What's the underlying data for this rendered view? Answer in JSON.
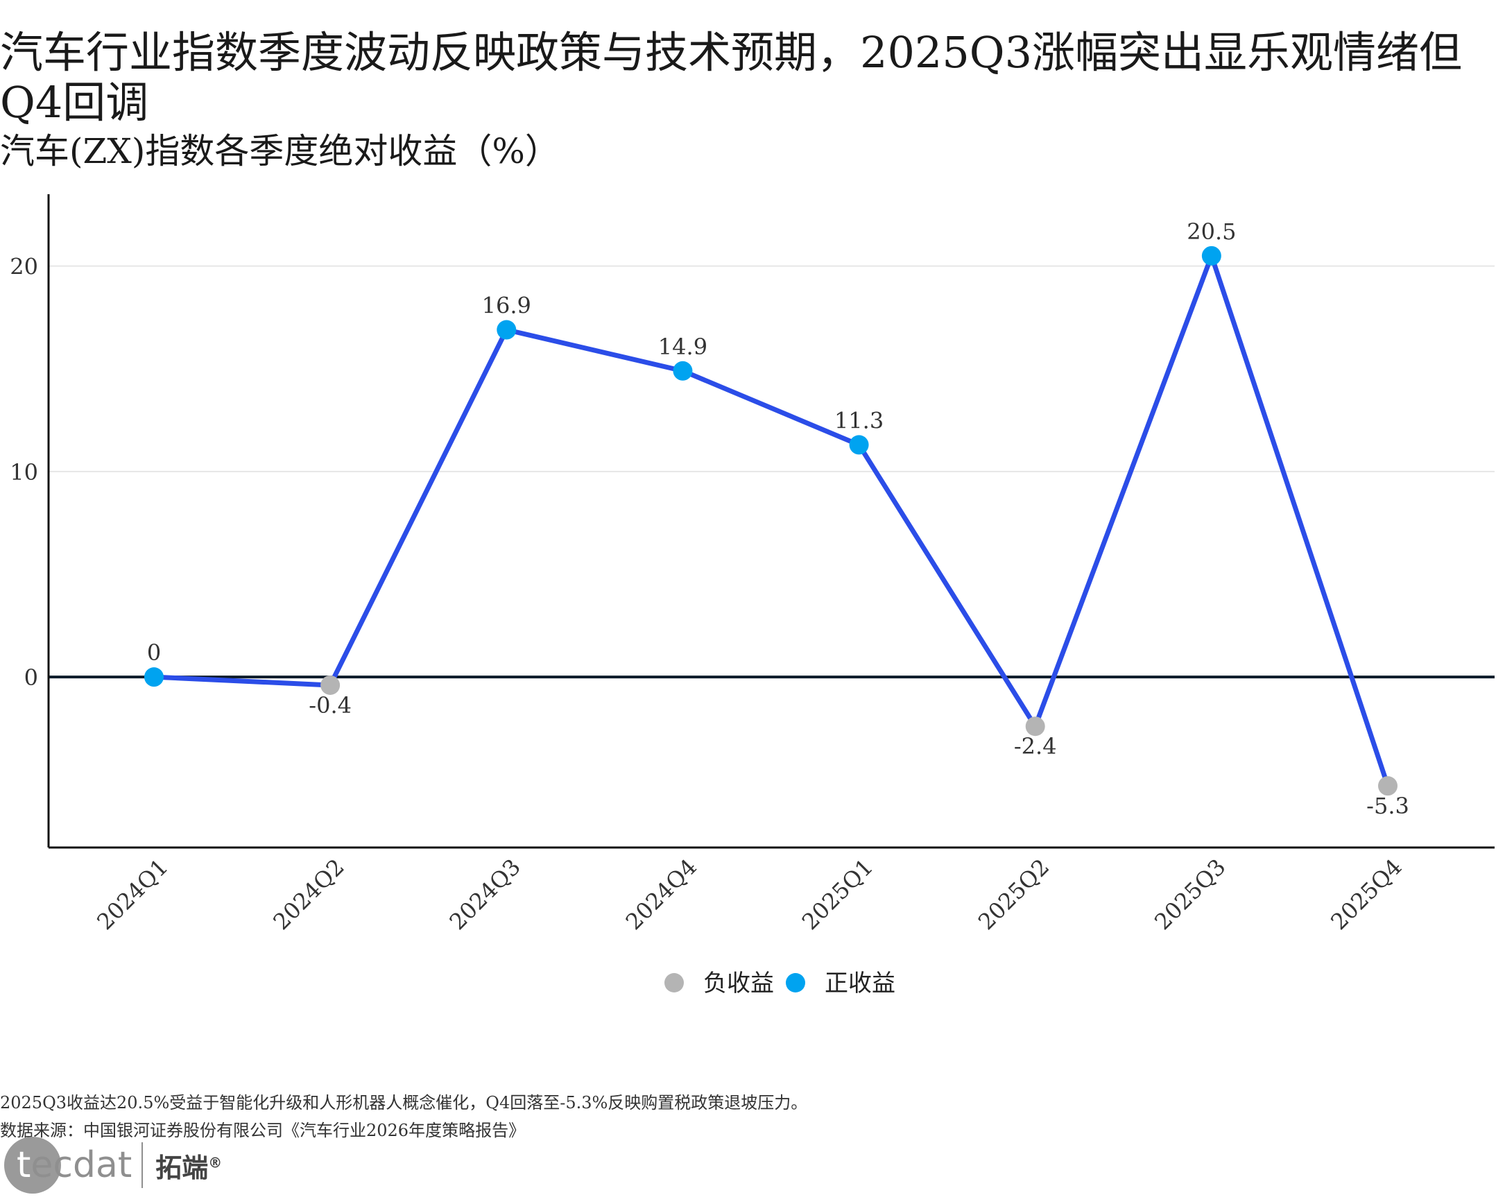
{
  "title": "汽车行业指数季度波动反映政策与技术预期，2025Q3涨幅突出显乐观情绪但\nQ4回调",
  "subtitle": "汽车(ZX)指数各季度绝对收益（%）",
  "chart_data": {
    "type": "line",
    "categories": [
      "2024Q1",
      "2024Q2",
      "2024Q3",
      "2024Q4",
      "2025Q1",
      "2025Q2",
      "2025Q3",
      "2025Q4"
    ],
    "values": [
      0,
      -0.4,
      16.9,
      14.9,
      11.3,
      -2.4,
      20.5,
      -5.3
    ],
    "value_labels": [
      "0",
      "-0.4",
      "16.9",
      "14.9",
      "11.3",
      "-2.4",
      "20.5",
      "-5.3"
    ],
    "y_ticks": [
      "0",
      "10",
      "20"
    ],
    "ylim": [
      -8.3,
      23.5
    ],
    "grid": true,
    "legend": [
      "负收益",
      "正收益"
    ],
    "legend_position": "bottom",
    "colors": {
      "line": "#2b4de8",
      "positive": "#00a3f0",
      "negative": "#b4b4b4",
      "zero_line": "#0d1b2a",
      "grid": "#e6e6e6"
    }
  },
  "footer": {
    "note": "2025Q3收益达20.5%受益于智能化升级和人形机器人概念催化，Q4回落至-5.3%反映购置税政策退坡压力。",
    "source": "数据来源：中国银河证券股份有限公司《汽车行业2026年度策略报告》"
  },
  "logo": {
    "en_first": "t",
    "en_rest": "ecdat",
    "cn": "拓端",
    "reg": "®"
  }
}
